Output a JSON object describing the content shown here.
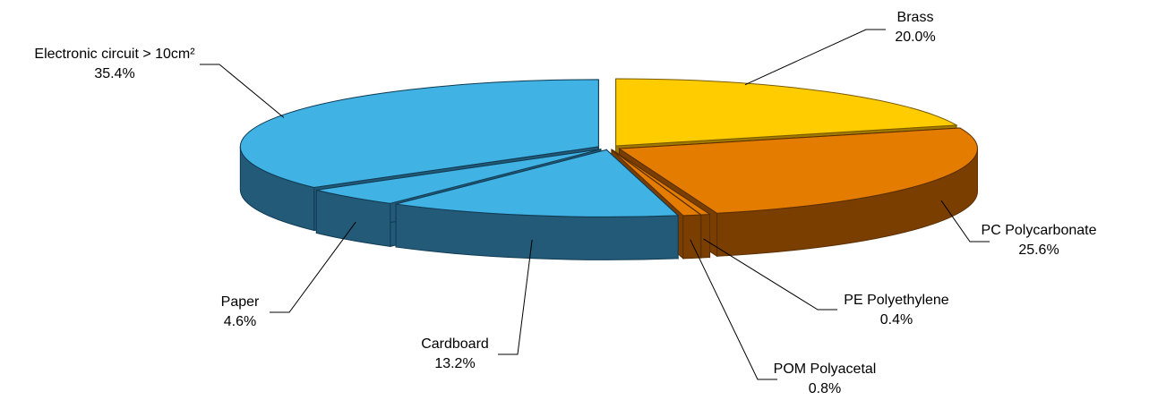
{
  "chart_data": {
    "type": "pie",
    "style": "3d-exploded",
    "title": "",
    "slices": [
      {
        "name": "Brass",
        "value": 20.0,
        "label": "20.0%",
        "group": "yellow"
      },
      {
        "name": "PC Polycarbonate",
        "value": 25.6,
        "label": "25.6%",
        "group": "orange"
      },
      {
        "name": "PE Polyethylene",
        "value": 0.4,
        "label": "0.4%",
        "group": "orange"
      },
      {
        "name": "POM Polyacetal",
        "value": 0.8,
        "label": "0.8%",
        "group": "orange"
      },
      {
        "name": "Cardboard",
        "value": 13.2,
        "label": "13.2%",
        "group": "blue"
      },
      {
        "name": "Paper",
        "value": 4.6,
        "label": "4.6%",
        "group": "blue"
      },
      {
        "name": "Electronic circuit > 10cm²",
        "value": 35.4,
        "label": "35.4%",
        "group": "blue"
      }
    ],
    "colors": {
      "yellow": {
        "top": "#FFCC00",
        "side": "#A07A00",
        "edge": "#7A5A00"
      },
      "orange": {
        "top": "#E47C00",
        "side": "#7A3F00",
        "edge": "#5A2E00"
      },
      "blue": {
        "top": "#40B2E3",
        "side": "#235A78",
        "edge": "#103A52"
      }
    },
    "legend": "none"
  }
}
